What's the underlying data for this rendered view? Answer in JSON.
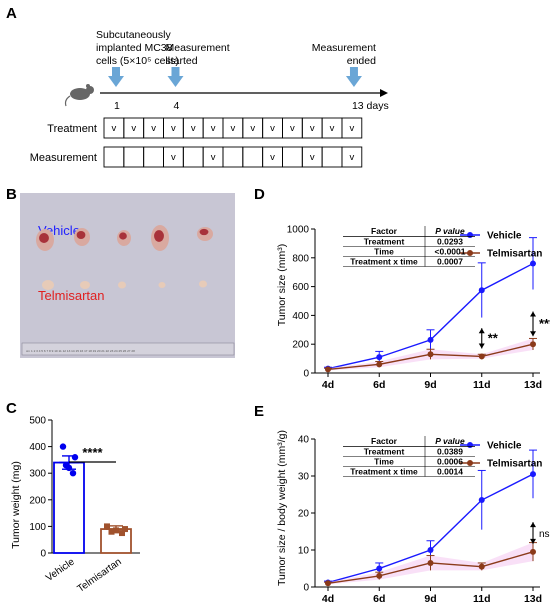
{
  "panel_labels": {
    "a": "A",
    "b": "B",
    "c": "C",
    "d": "D",
    "e": "E"
  },
  "timeline": {
    "events": [
      {
        "day": 1,
        "lines": [
          "Subcutaneously",
          "implanted MC38",
          "cells (5×10⁵ cells)"
        ]
      },
      {
        "day": 4,
        "lines": [
          "Measurement",
          "started"
        ]
      },
      {
        "day": 13,
        "lines": [
          "Measurement",
          "ended"
        ]
      }
    ],
    "tick_labels": [
      "1",
      "4",
      "13 days"
    ],
    "rows": [
      {
        "label": "Treatment",
        "marks": [
          "v",
          "v",
          "v",
          "v",
          "v",
          "v",
          "v",
          "v",
          "v",
          "v",
          "v",
          "v",
          "v"
        ]
      },
      {
        "label": "Measurement",
        "marks": [
          "",
          "",
          "",
          "v",
          "",
          "v",
          "",
          "",
          "v",
          "",
          "v",
          "",
          "v"
        ]
      }
    ],
    "colors": {
      "arrow": "#6aa6d6",
      "mouse": "#666666"
    }
  },
  "photo": {
    "groups": [
      {
        "label": "Vehicle",
        "color": "#2020ff"
      },
      {
        "label": "Telmisartan",
        "color": "#e02020"
      }
    ],
    "ruler": "cm 1 2 3 4 5 6 7 8 9 10 11 12 13 14 15 16 17 18 19 20 21 22 23 24 25 26 27 28"
  },
  "chart_data": [
    {
      "id": "c",
      "type": "bar",
      "categories": [
        "Vehicle",
        "Telmisartan"
      ],
      "values": [
        340,
        90
      ],
      "errors": [
        25,
        12
      ],
      "points": [
        [
          400,
          360,
          330,
          300,
          320
        ],
        [
          100,
          90,
          80,
          75,
          85
        ]
      ],
      "ylabel": "Tumor weight (mg)",
      "ylim": [
        0,
        500
      ],
      "yticks": [
        0,
        100,
        200,
        300,
        400,
        500
      ],
      "significance": "****",
      "colors": [
        "#0000ee",
        "#a0522d"
      ]
    },
    {
      "id": "d",
      "type": "line",
      "x": [
        "4d",
        "6d",
        "9d",
        "11d",
        "13d"
      ],
      "series": [
        {
          "name": "Vehicle",
          "color": "#1a1aff",
          "values": [
            30,
            110,
            230,
            575,
            760
          ],
          "errors": [
            10,
            40,
            70,
            190,
            180
          ]
        },
        {
          "name": "Telmisartan",
          "color": "#8b3a1a",
          "values": [
            25,
            60,
            130,
            115,
            200
          ],
          "errors": [
            8,
            20,
            35,
            15,
            40
          ]
        }
      ],
      "ylabel": "Tumor size (mm³)",
      "ylim": [
        0,
        1000
      ],
      "yticks": [
        0,
        200,
        400,
        600,
        800,
        1000
      ],
      "stats_table": {
        "headers": [
          "Factor",
          "P value"
        ],
        "rows": [
          [
            "Treatment",
            "0.0293"
          ],
          [
            "Time",
            "<0.0001"
          ],
          [
            "Treatment x time",
            "0.0007"
          ]
        ]
      },
      "annotations": [
        {
          "x": "11d",
          "label": "**"
        },
        {
          "x": "13d",
          "label": "***"
        }
      ],
      "legend": "top-right"
    },
    {
      "id": "e",
      "type": "line",
      "x": [
        "4d",
        "6d",
        "9d",
        "11d",
        "13d"
      ],
      "series": [
        {
          "name": "Vehicle",
          "color": "#1a1aff",
          "values": [
            1.2,
            5,
            10,
            23.5,
            30.5
          ],
          "errors": [
            0.4,
            1.5,
            2.5,
            8,
            6.5
          ]
        },
        {
          "name": "Telmisartan",
          "color": "#8b3a1a",
          "values": [
            1.0,
            3,
            6.5,
            5.5,
            9.5
          ],
          "errors": [
            0.3,
            1,
            2,
            1,
            2.5
          ]
        }
      ],
      "ylabel": "Tumor size / body weight (mm³/g)",
      "ylim": [
        0,
        40
      ],
      "yticks": [
        0,
        10,
        20,
        30,
        40
      ],
      "stats_table": {
        "headers": [
          "Factor",
          "P value"
        ],
        "rows": [
          [
            "Treatment",
            "0.0389"
          ],
          [
            "Time",
            "0.0006"
          ],
          [
            "Treatment x time",
            "0.0014"
          ]
        ]
      },
      "annotations": [
        {
          "x": "13d",
          "label": "ns"
        }
      ],
      "legend": "top-right"
    }
  ]
}
